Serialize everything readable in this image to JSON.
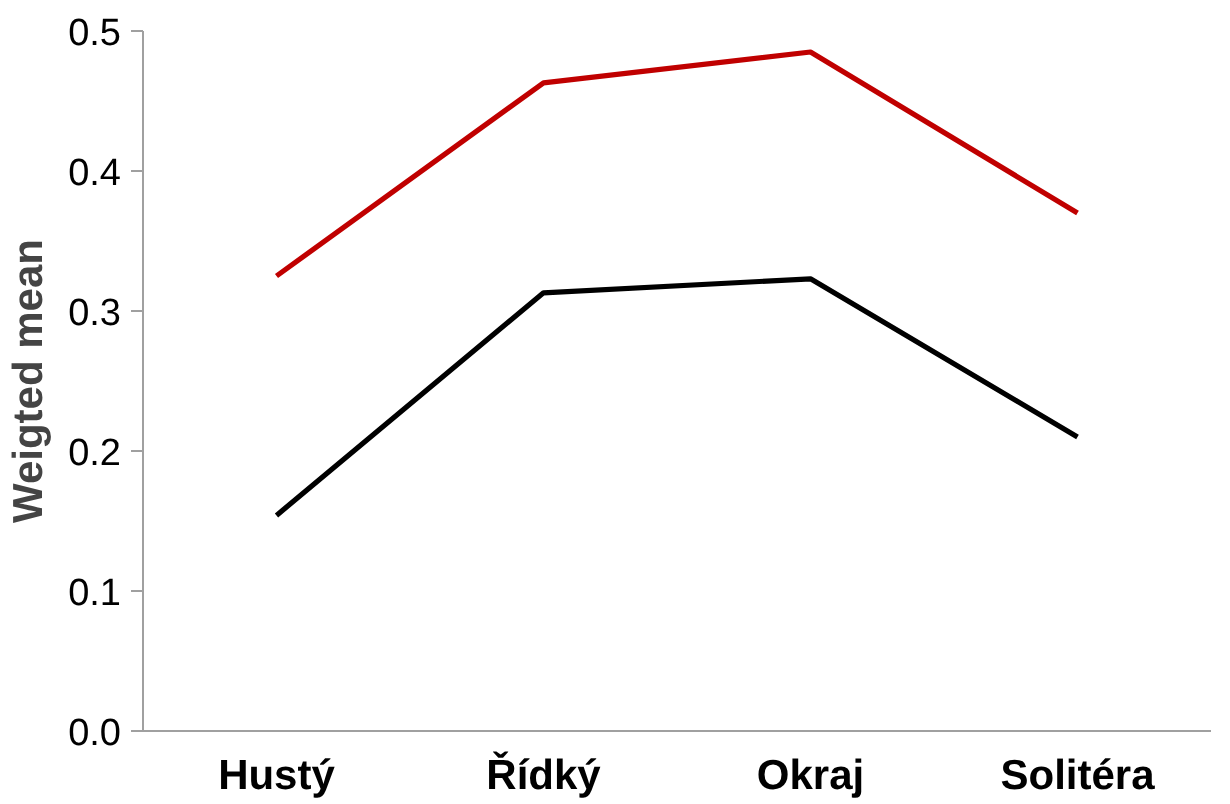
{
  "chart_data": {
    "type": "line",
    "ylabel": "Weigted mean",
    "categories": [
      "Hustý",
      "Řídký",
      "Okraj",
      "Solitéra"
    ],
    "series": [
      {
        "color": "#000000",
        "values": [
          0.154,
          0.313,
          0.323,
          0.21
        ]
      },
      {
        "color": "#c00000",
        "values": [
          0.325,
          0.463,
          0.485,
          0.37
        ]
      }
    ],
    "ylim": [
      0,
      0.5
    ],
    "yticks": [
      {
        "value": 0,
        "label": "0.0"
      },
      0.1,
      0.2,
      0.3,
      0.4,
      0.5
    ],
    "grid": false,
    "marker": "none",
    "line_style": "solid"
  }
}
